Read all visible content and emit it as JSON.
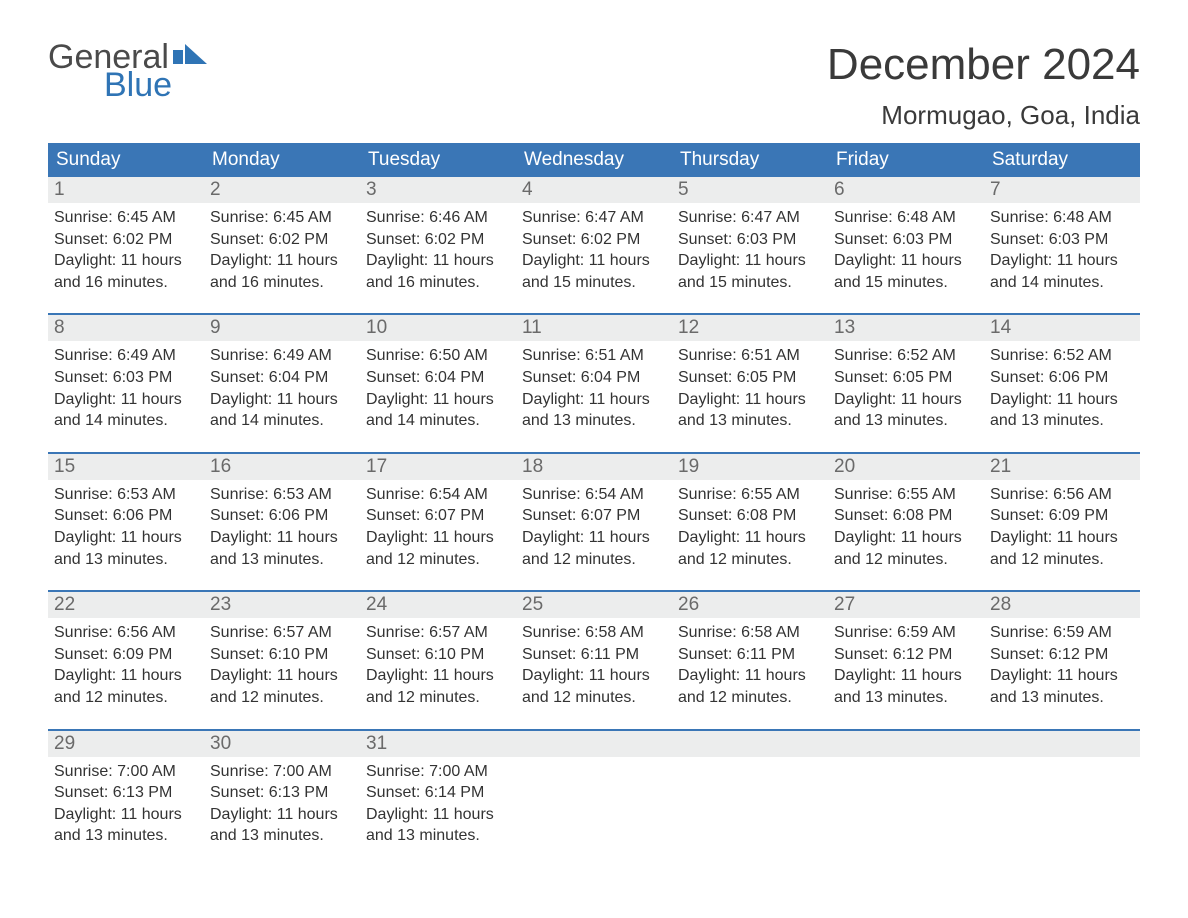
{
  "logo": {
    "word1": "General",
    "word2": "Blue",
    "flag_color": "#2f74b5"
  },
  "title": "December 2024",
  "location": "Mormugao, Goa, India",
  "colors": {
    "header_bg": "#3a76b6",
    "header_text": "#ffffff",
    "daynum_bg": "#eceded",
    "daynum_text": "#6a6a6a",
    "week_border": "#3a76b6",
    "body_text": "#333333",
    "title_text": "#3a3a3a"
  },
  "weekdays": [
    "Sunday",
    "Monday",
    "Tuesday",
    "Wednesday",
    "Thursday",
    "Friday",
    "Saturday"
  ],
  "labels": {
    "sunrise": "Sunrise",
    "sunset": "Sunset",
    "daylight": "Daylight"
  },
  "weeks": [
    [
      {
        "n": "1",
        "sr": "6:45 AM",
        "ss": "6:02 PM",
        "dl": "11 hours and 16 minutes."
      },
      {
        "n": "2",
        "sr": "6:45 AM",
        "ss": "6:02 PM",
        "dl": "11 hours and 16 minutes."
      },
      {
        "n": "3",
        "sr": "6:46 AM",
        "ss": "6:02 PM",
        "dl": "11 hours and 16 minutes."
      },
      {
        "n": "4",
        "sr": "6:47 AM",
        "ss": "6:02 PM",
        "dl": "11 hours and 15 minutes."
      },
      {
        "n": "5",
        "sr": "6:47 AM",
        "ss": "6:03 PM",
        "dl": "11 hours and 15 minutes."
      },
      {
        "n": "6",
        "sr": "6:48 AM",
        "ss": "6:03 PM",
        "dl": "11 hours and 15 minutes."
      },
      {
        "n": "7",
        "sr": "6:48 AM",
        "ss": "6:03 PM",
        "dl": "11 hours and 14 minutes."
      }
    ],
    [
      {
        "n": "8",
        "sr": "6:49 AM",
        "ss": "6:03 PM",
        "dl": "11 hours and 14 minutes."
      },
      {
        "n": "9",
        "sr": "6:49 AM",
        "ss": "6:04 PM",
        "dl": "11 hours and 14 minutes."
      },
      {
        "n": "10",
        "sr": "6:50 AM",
        "ss": "6:04 PM",
        "dl": "11 hours and 14 minutes."
      },
      {
        "n": "11",
        "sr": "6:51 AM",
        "ss": "6:04 PM",
        "dl": "11 hours and 13 minutes."
      },
      {
        "n": "12",
        "sr": "6:51 AM",
        "ss": "6:05 PM",
        "dl": "11 hours and 13 minutes."
      },
      {
        "n": "13",
        "sr": "6:52 AM",
        "ss": "6:05 PM",
        "dl": "11 hours and 13 minutes."
      },
      {
        "n": "14",
        "sr": "6:52 AM",
        "ss": "6:06 PM",
        "dl": "11 hours and 13 minutes."
      }
    ],
    [
      {
        "n": "15",
        "sr": "6:53 AM",
        "ss": "6:06 PM",
        "dl": "11 hours and 13 minutes."
      },
      {
        "n": "16",
        "sr": "6:53 AM",
        "ss": "6:06 PM",
        "dl": "11 hours and 13 minutes."
      },
      {
        "n": "17",
        "sr": "6:54 AM",
        "ss": "6:07 PM",
        "dl": "11 hours and 12 minutes."
      },
      {
        "n": "18",
        "sr": "6:54 AM",
        "ss": "6:07 PM",
        "dl": "11 hours and 12 minutes."
      },
      {
        "n": "19",
        "sr": "6:55 AM",
        "ss": "6:08 PM",
        "dl": "11 hours and 12 minutes."
      },
      {
        "n": "20",
        "sr": "6:55 AM",
        "ss": "6:08 PM",
        "dl": "11 hours and 12 minutes."
      },
      {
        "n": "21",
        "sr": "6:56 AM",
        "ss": "6:09 PM",
        "dl": "11 hours and 12 minutes."
      }
    ],
    [
      {
        "n": "22",
        "sr": "6:56 AM",
        "ss": "6:09 PM",
        "dl": "11 hours and 12 minutes."
      },
      {
        "n": "23",
        "sr": "6:57 AM",
        "ss": "6:10 PM",
        "dl": "11 hours and 12 minutes."
      },
      {
        "n": "24",
        "sr": "6:57 AM",
        "ss": "6:10 PM",
        "dl": "11 hours and 12 minutes."
      },
      {
        "n": "25",
        "sr": "6:58 AM",
        "ss": "6:11 PM",
        "dl": "11 hours and 12 minutes."
      },
      {
        "n": "26",
        "sr": "6:58 AM",
        "ss": "6:11 PM",
        "dl": "11 hours and 12 minutes."
      },
      {
        "n": "27",
        "sr": "6:59 AM",
        "ss": "6:12 PM",
        "dl": "11 hours and 13 minutes."
      },
      {
        "n": "28",
        "sr": "6:59 AM",
        "ss": "6:12 PM",
        "dl": "11 hours and 13 minutes."
      }
    ],
    [
      {
        "n": "29",
        "sr": "7:00 AM",
        "ss": "6:13 PM",
        "dl": "11 hours and 13 minutes."
      },
      {
        "n": "30",
        "sr": "7:00 AM",
        "ss": "6:13 PM",
        "dl": "11 hours and 13 minutes."
      },
      {
        "n": "31",
        "sr": "7:00 AM",
        "ss": "6:14 PM",
        "dl": "11 hours and 13 minutes."
      },
      null,
      null,
      null,
      null
    ]
  ]
}
